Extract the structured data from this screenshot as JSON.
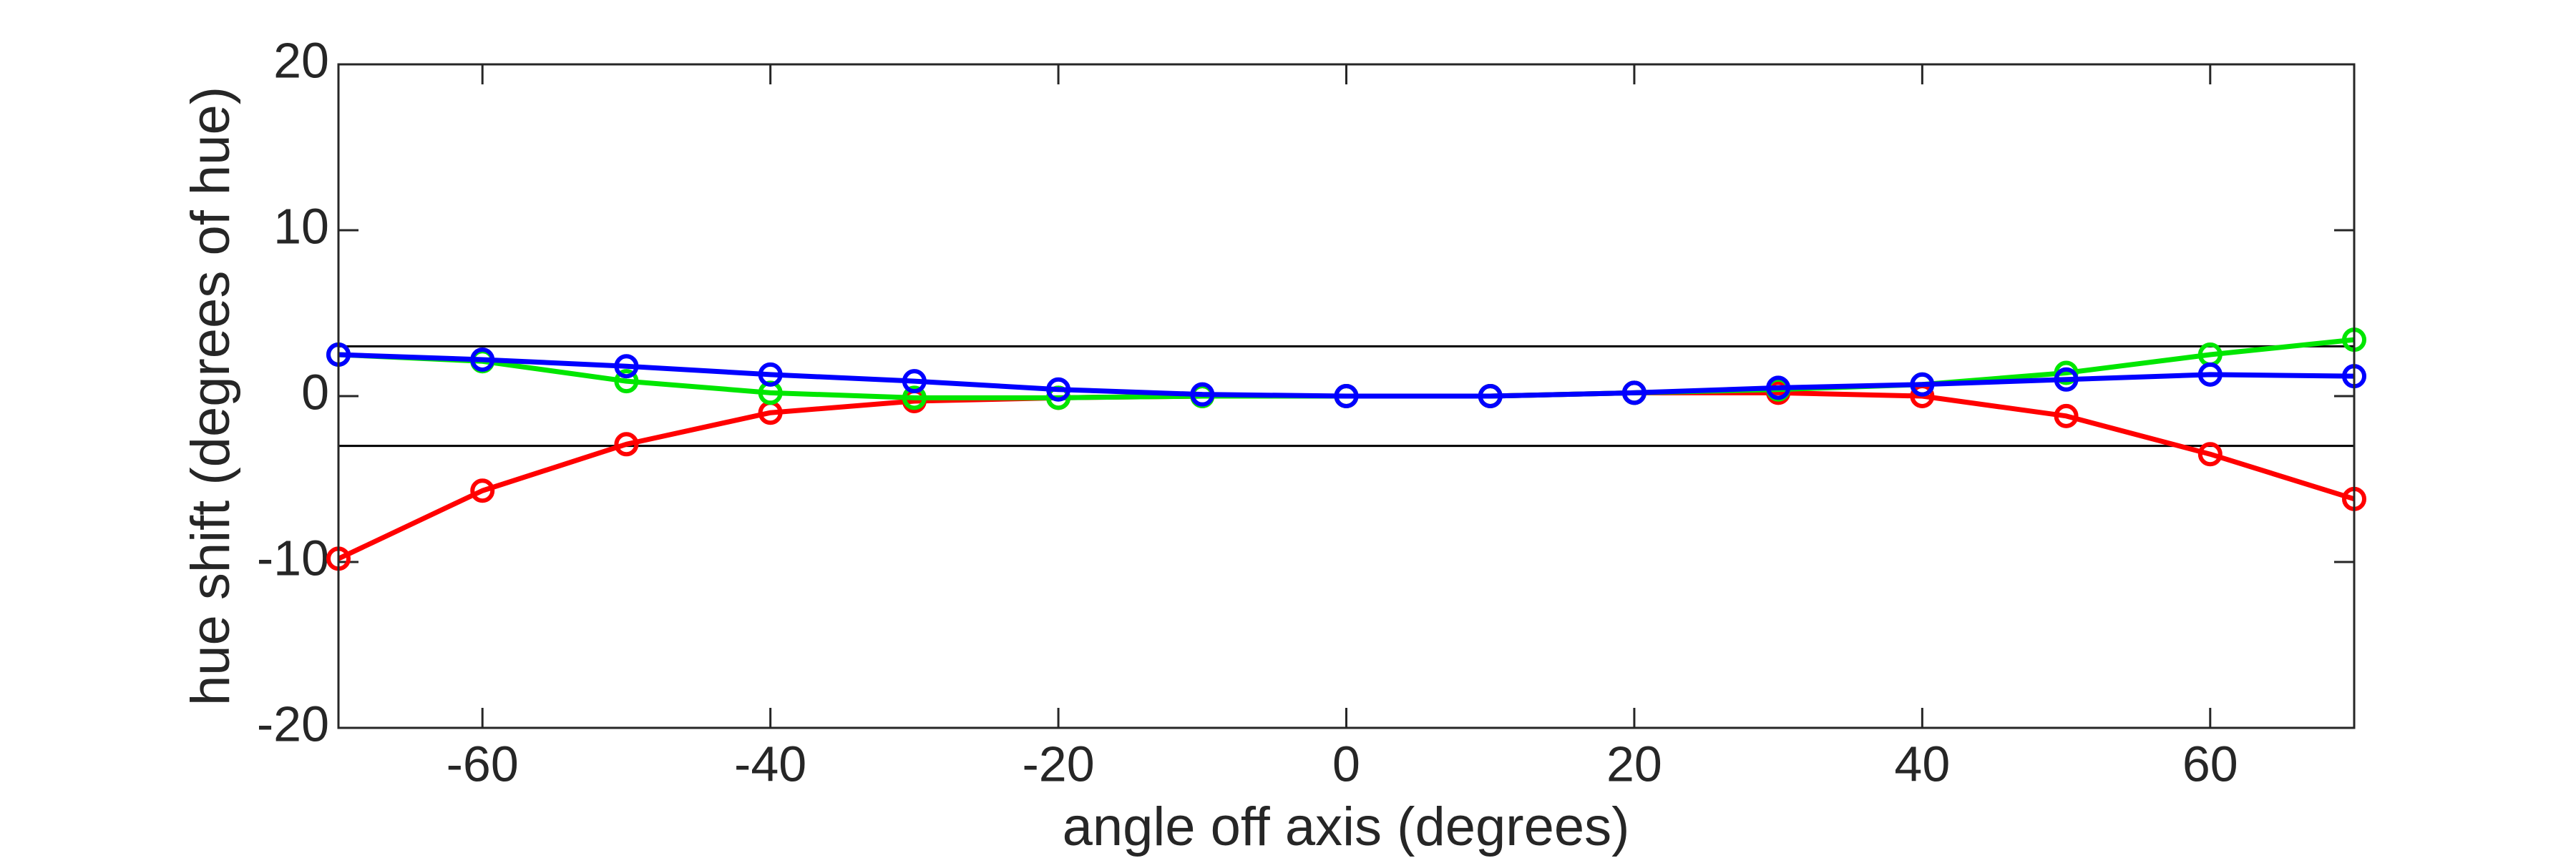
{
  "chart_data": {
    "type": "line",
    "xlabel": "angle off axis (degrees)",
    "ylabel": "hue shift (degrees of hue)",
    "x": [
      -70,
      -60,
      -50,
      -40,
      -30,
      -20,
      -10,
      0,
      10,
      20,
      30,
      40,
      50,
      60,
      70
    ],
    "series": [
      {
        "color": "#ff0000",
        "values": [
          -9.8,
          -5.7,
          -2.9,
          -1.0,
          -0.3,
          -0.1,
          0,
          0,
          0,
          0.2,
          0.2,
          0,
          -1.2,
          -3.5,
          -6.2
        ]
      },
      {
        "color": "#00e600",
        "values": [
          2.5,
          2.1,
          0.9,
          0.2,
          -0.1,
          -0.1,
          0,
          0,
          0,
          0.2,
          0.4,
          0.7,
          1.4,
          2.5,
          3.4
        ]
      },
      {
        "color": "#0000ff",
        "values": [
          2.5,
          2.2,
          1.8,
          1.3,
          0.9,
          0.4,
          0.1,
          0,
          0,
          0.2,
          0.5,
          0.7,
          1.0,
          1.3,
          1.2
        ]
      }
    ],
    "reference_lines": [
      3,
      -3
    ],
    "xlim": [
      -70,
      70
    ],
    "xticks": [
      -60,
      -40,
      -20,
      0,
      20,
      40,
      60
    ],
    "ylim": [
      -20,
      20
    ],
    "yticks": [
      -20,
      -10,
      0,
      10,
      20
    ],
    "grid": false
  }
}
